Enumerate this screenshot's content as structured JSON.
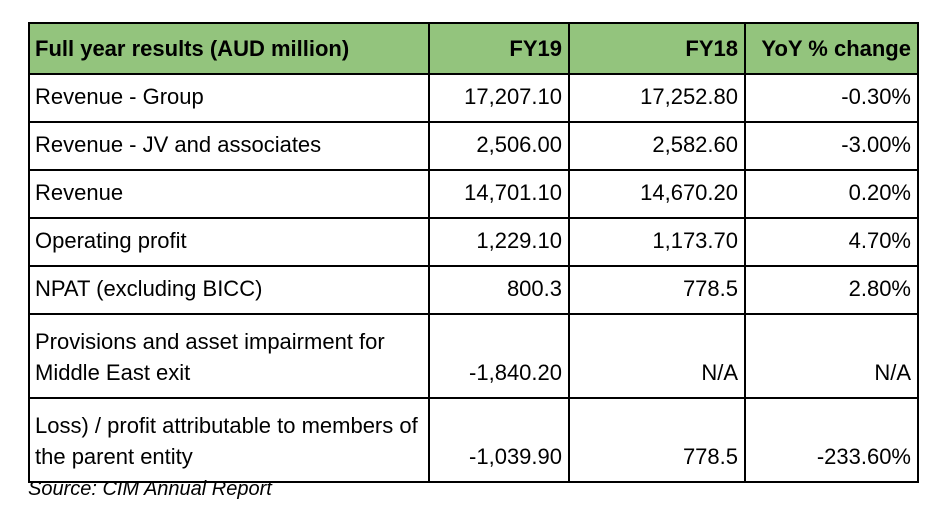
{
  "chart_data": {
    "type": "table",
    "title": "Full year results (AUD million)",
    "columns": [
      "Full year results (AUD million)",
      "FY19",
      "FY18",
      "YoY % change"
    ],
    "rows": [
      [
        "Revenue - Group",
        "17,207.10",
        "17,252.80",
        "-0.30%"
      ],
      [
        "Revenue - JV and associates",
        "2,506.00",
        "2,582.60",
        "-3.00%"
      ],
      [
        "Revenue",
        "14,701.10",
        "14,670.20",
        "0.20%"
      ],
      [
        "Operating profit",
        "1,229.10",
        "1,173.70",
        "4.70%"
      ],
      [
        "NPAT (excluding BICC)",
        "800.3",
        "778.5",
        "2.80%"
      ],
      [
        "Provisions and asset impairment for Middle East exit",
        "-1,840.20",
        "N/A",
        "N/A"
      ],
      [
        "Loss) / profit attributable to members of the parent entity",
        "-1,039.90",
        "778.5",
        "-233.60%"
      ]
    ],
    "source": "Source: CIM Annual Report",
    "layout": {
      "header_align": "first column left, value columns right",
      "value_align": "right",
      "grid": "full black borders"
    }
  },
  "colors": {
    "header_background": "#93c47d",
    "border": "#000000",
    "text": "#000000",
    "page_background": "#ffffff"
  }
}
